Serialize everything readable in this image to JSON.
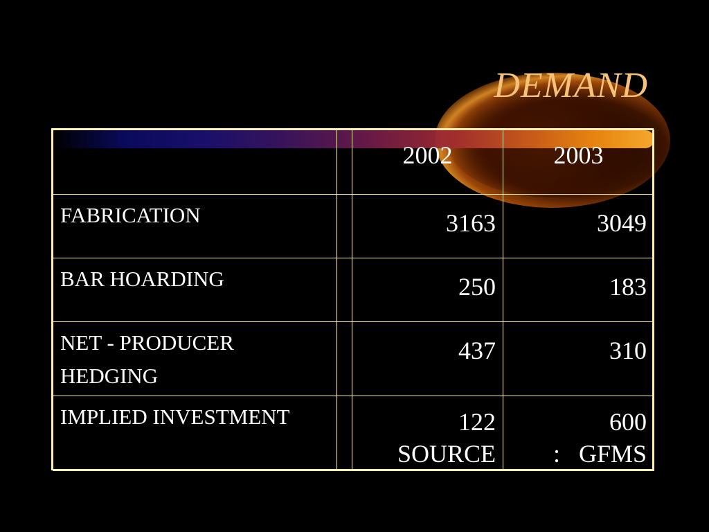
{
  "slide": {
    "title": "DEMAND",
    "title_color": "#f5c27a",
    "border_color": "#fff0b4",
    "background_color": "#000000"
  },
  "table": {
    "headers": [
      "",
      "",
      "2002",
      "2003"
    ],
    "rows": [
      {
        "label": "FABRICATION",
        "y2002": "3163",
        "y2003": "3049"
      },
      {
        "label": "BAR HOARDING",
        "y2002": "250",
        "y2003": "183"
      },
      {
        "label": "NET - PRODUCER HEDGING",
        "y2002": "437",
        "y2003": "310"
      },
      {
        "label": "IMPLIED INVESTMENT",
        "y2002": "122",
        "y2003": "600"
      }
    ],
    "source_left": "SOURCE",
    "source_right": ":   GFMS"
  }
}
